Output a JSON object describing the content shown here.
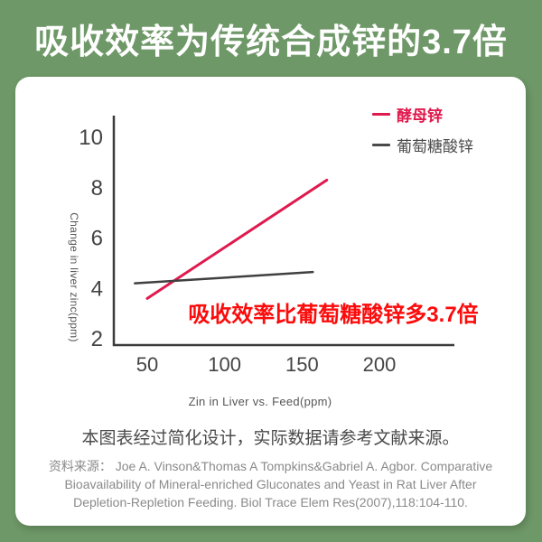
{
  "title": "吸收效率为传统合成锌的3.7倍",
  "chart_data": {
    "type": "line",
    "xlabel": "Zin in Liver vs. Feed(ppm)",
    "ylabel": "Change in liver zinc(ppm)",
    "x_ticks": [
      50,
      100,
      150,
      200
    ],
    "y_ticks": [
      2,
      4,
      6,
      8,
      10
    ],
    "xlim": [
      28,
      248
    ],
    "ylim": [
      1.7,
      10.9
    ],
    "grid": false,
    "legend_position": "top-right",
    "series": [
      {
        "id": "yeast-zinc",
        "name": "酵母锌",
        "color": "#e0194d",
        "width": 3,
        "x": [
          50,
          166
        ],
        "y": [
          3.6,
          8.3
        ]
      },
      {
        "id": "zinc-gluconate",
        "name": "葡萄糖酸锌",
        "color": "#404040",
        "width": 2.5,
        "x": [
          42,
          157
        ],
        "y": [
          4.2,
          4.65
        ]
      }
    ],
    "annotation": "吸收效率比葡萄糖酸锌多3.7倍"
  },
  "note": "本图表经过简化设计，实际数据请参考文献来源。",
  "source": {
    "lines": [
      "资料来源： Joe A. Vinson&Thomas A Tompkins&Gabriel A. Agbor. Comparative",
      "Bioavailability of Mineral-enriched Gluconates and Yeast in Rat Liver After",
      "Depletion-Repletion Feeding. Biol Trace Elem Res(2007),118:104-110."
    ]
  },
  "colors": {
    "background_green": "#6e9867",
    "card_white": "#ffffff",
    "line_red": "#e0194d",
    "line_gray": "#404040",
    "annotation_red": "#fb0b0b",
    "axis": "#3a3a3a",
    "tick_text": "#444444"
  }
}
